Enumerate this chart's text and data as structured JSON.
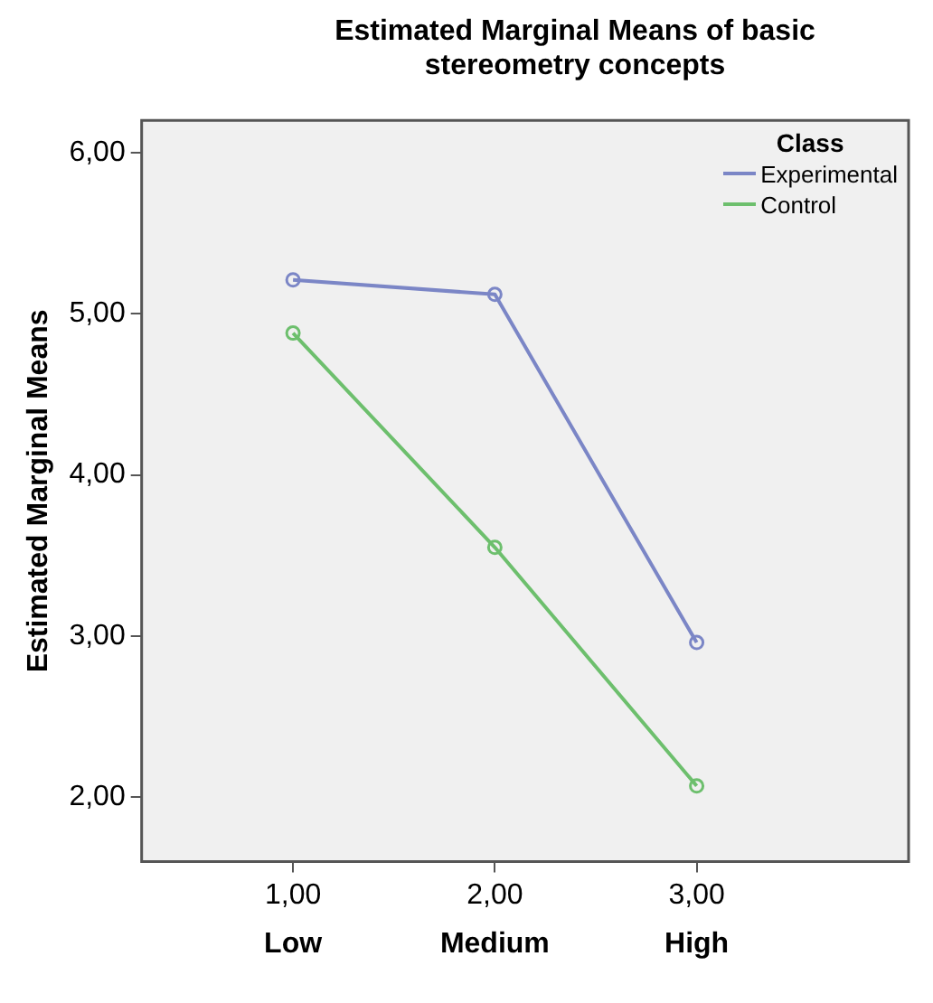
{
  "chart_data": {
    "type": "line",
    "title": "Estimated Marginal Means of basic stereometry concepts",
    "ylabel": "Estimated Marginal Means",
    "legend_title": "Class",
    "legend": "top right",
    "marker": "circle",
    "grid": false,
    "x": [
      1,
      2,
      3
    ],
    "xlim": [
      0.25,
      4.05
    ],
    "xticks": [
      {
        "value": 1,
        "label": "1,00"
      },
      {
        "value": 2,
        "label": "2,00"
      },
      {
        "value": 3,
        "label": "3,00"
      }
    ],
    "ylim": [
      1.6,
      6.2
    ],
    "yticks": [
      {
        "value": 2,
        "label": "2,00"
      },
      {
        "value": 3,
        "label": "3,00"
      },
      {
        "value": 4,
        "label": "4,00"
      },
      {
        "value": 5,
        "label": "5,00"
      },
      {
        "value": 6,
        "label": "6,00"
      }
    ],
    "series": [
      {
        "name": "Experimental",
        "color": "#7b86c6",
        "values": [
          5.21,
          5.12,
          2.96
        ]
      },
      {
        "name": "Control",
        "color": "#6dbf6d",
        "values": [
          4.88,
          3.55,
          2.07
        ]
      }
    ],
    "annotations": [
      "Low",
      "Medium",
      "High"
    ]
  }
}
